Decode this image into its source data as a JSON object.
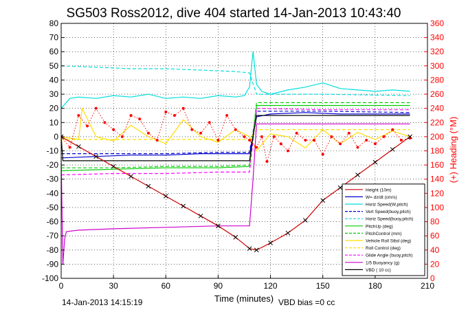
{
  "chart_data": {
    "type": "line",
    "title": "SG503 Ross2012, dive 404 started 14-Jan-2013 10:43:40",
    "xlabel": "Time (minutes)",
    "ylabel": "",
    "y2label": "(+) Heading (°M)",
    "xlim": [
      0,
      210
    ],
    "ylim": [
      -100,
      80
    ],
    "y2lim": [
      0,
      360
    ],
    "xticks": [
      0,
      30,
      60,
      90,
      120,
      150,
      180,
      210
    ],
    "yticks": [
      -100,
      -90,
      -80,
      -70,
      -60,
      -50,
      -40,
      -30,
      -20,
      -10,
      0,
      10,
      20,
      30,
      40,
      50,
      60,
      70,
      80
    ],
    "y2ticks": [
      0,
      20,
      40,
      60,
      80,
      100,
      120,
      140,
      160,
      180,
      200,
      220,
      240,
      260,
      280,
      300,
      320,
      340,
      360
    ],
    "grid": true,
    "legend_position": "lower-right",
    "footer_left": "14-Jan-2013 14:15:19",
    "footer_right": "VBD bias =0 cc",
    "series": [
      {
        "name": "Height (10m)",
        "color": "#cc0000",
        "style": "solid",
        "x": [
          0,
          10,
          20,
          30,
          40,
          50,
          60,
          70,
          80,
          90,
          100,
          108,
          112,
          120,
          130,
          140,
          150,
          160,
          170,
          180,
          190,
          200
        ],
        "y": [
          0,
          -7,
          -14,
          -21,
          -28,
          -35,
          -42,
          -49,
          -56,
          -63,
          -71,
          -79,
          -80,
          -75,
          -68,
          -59,
          -45,
          -36,
          -27,
          -18,
          -9,
          0
        ]
      },
      {
        "name": "W= dz/dt (cm/s)",
        "color": "#0000cc",
        "style": "solid",
        "x": [
          0,
          20,
          40,
          60,
          80,
          100,
          108,
          112,
          120,
          140,
          160,
          180,
          200
        ],
        "y": [
          -15,
          -14,
          -13,
          -13,
          -12,
          -12,
          -12,
          14,
          16,
          17,
          16,
          16,
          16
        ]
      },
      {
        "name": "Horiz Speed(W,pitch)",
        "color": "#00dddd",
        "style": "solid",
        "x": [
          0,
          5,
          10,
          20,
          30,
          40,
          50,
          60,
          70,
          80,
          90,
          100,
          105,
          108,
          110,
          112,
          115,
          120,
          130,
          140,
          150,
          160,
          170,
          180,
          190,
          200
        ],
        "y": [
          20,
          27,
          28,
          27,
          29,
          28,
          30,
          27,
          28,
          27,
          29,
          28,
          29,
          35,
          60,
          37,
          32,
          30,
          33,
          35,
          38,
          34,
          33,
          32,
          33,
          32
        ]
      },
      {
        "name": "Vert Speed(buoy,pitch)",
        "color": "#0000cc",
        "style": "dashed",
        "x": [
          0,
          30,
          60,
          90,
          108,
          112,
          150,
          200
        ],
        "y": [
          -12,
          -12,
          -12,
          -11,
          -11,
          18,
          18,
          17
        ]
      },
      {
        "name": "Horiz Speed(buoy,pitch)",
        "color": "#00dddd",
        "style": "dashed",
        "x": [
          0,
          20,
          40,
          60,
          80,
          100,
          108,
          112,
          150,
          200
        ],
        "y": [
          50,
          49,
          48,
          48,
          47,
          46,
          45,
          30,
          30,
          29
        ]
      },
      {
        "name": "PitchUp (deg)",
        "color": "#00cc00",
        "style": "solid",
        "x": [
          0,
          30,
          60,
          90,
          108,
          112,
          150,
          200
        ],
        "y": [
          -24,
          -23,
          -22,
          -22,
          -21,
          22,
          22,
          22
        ]
      },
      {
        "name": "PitchControl (mm)",
        "color": "#00cc00",
        "style": "dashed",
        "x": [
          0,
          30,
          60,
          90,
          108,
          112,
          150,
          200
        ],
        "y": [
          -22,
          -22,
          -21,
          -21,
          -20,
          24,
          24,
          24
        ]
      },
      {
        "name": "Vehicle Roll Stbd (deg)",
        "color": "#ffdd00",
        "style": "solid",
        "x": [
          0,
          10,
          12,
          20,
          30,
          40,
          50,
          60,
          70,
          80,
          90,
          100,
          108,
          112,
          120,
          130,
          140,
          150,
          160,
          170,
          180,
          190,
          200
        ],
        "y": [
          0,
          -2,
          20,
          0,
          -3,
          8,
          0,
          -5,
          12,
          0,
          -4,
          5,
          0,
          -10,
          2,
          0,
          -8,
          5,
          -5,
          3,
          -2,
          4,
          0
        ]
      },
      {
        "name": "Roll Control (deg)",
        "color": "#ffdd00",
        "style": "dashed",
        "x": [
          0,
          30,
          60,
          90,
          108,
          112,
          150,
          200
        ],
        "y": [
          -2,
          -2,
          -2,
          -2,
          -2,
          5,
          5,
          5
        ]
      },
      {
        "name": "Glide Angle (buoy,pitch)",
        "color": "#ff00ff",
        "style": "dashed",
        "x": [
          0,
          30,
          60,
          90,
          108,
          112,
          150,
          200
        ],
        "y": [
          -27,
          -26,
          -26,
          -25,
          -25,
          20,
          19,
          19
        ]
      },
      {
        "name": "1/5 Buoyancy (g)",
        "color": "#cc00cc",
        "style": "solid",
        "x": [
          0,
          1,
          2,
          3,
          10,
          30,
          60,
          90,
          108,
          110,
          112,
          130,
          160,
          200
        ],
        "y": [
          -15,
          -90,
          -72,
          -67,
          -66,
          -65,
          -64,
          -63,
          -63,
          -30,
          9,
          9,
          9,
          9
        ]
      },
      {
        "name": "VBD ( 10 cc)",
        "color": "#000000",
        "style": "solid",
        "x": [
          0,
          1,
          30,
          60,
          90,
          108,
          110,
          112,
          150,
          200
        ],
        "y": [
          0,
          -17,
          -17,
          -17,
          -17,
          -17,
          0,
          15,
          15,
          15
        ]
      },
      {
        "name": "Heading",
        "axis": "right",
        "color": "#ff0000",
        "style": "markers",
        "x": [
          0,
          5,
          10,
          15,
          20,
          25,
          30,
          35,
          40,
          45,
          50,
          55,
          60,
          65,
          70,
          75,
          80,
          85,
          90,
          95,
          100,
          105,
          108,
          112,
          115,
          118,
          122,
          126,
          130,
          135,
          140,
          145,
          150,
          155,
          160,
          165,
          170,
          175,
          180,
          185,
          190,
          195,
          200
        ],
        "y": [
          200,
          185,
          230,
          215,
          240,
          220,
          210,
          200,
          230,
          225,
          205,
          195,
          235,
          230,
          240,
          210,
          205,
          220,
          195,
          230,
          210,
          200,
          195,
          185,
          200,
          165,
          200,
          190,
          180,
          205,
          195,
          195,
          175,
          200,
          190,
          205,
          185,
          195,
          190,
          200,
          210,
          195,
          198
        ]
      }
    ]
  }
}
